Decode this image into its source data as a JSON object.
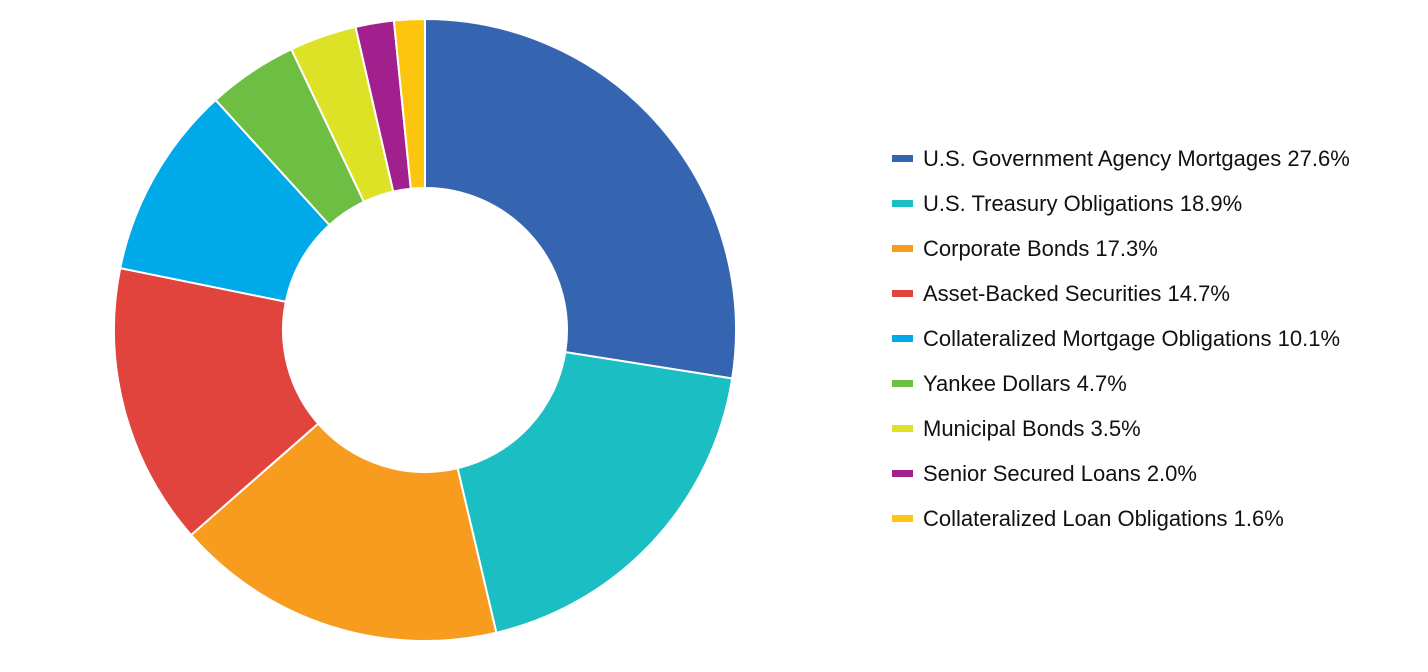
{
  "chart_data": {
    "type": "pie",
    "variant": "donut",
    "legend_position": "right",
    "categories": [
      "U.S. Government Agency Mortgages",
      "U.S. Treasury Obligations",
      "Corporate Bonds",
      "Asset-Backed Securities",
      "Collateralized Mortgage Obligations",
      "Yankee Dollars",
      "Municipal Bonds",
      "Senior Secured Loans",
      "Collateralized Loan Obligations"
    ],
    "values": [
      27.6,
      18.9,
      17.3,
      14.7,
      10.1,
      4.7,
      3.5,
      2.0,
      1.6
    ],
    "value_labels": [
      "27.6%",
      "18.9%",
      "17.3%",
      "14.7%",
      "10.1%",
      "4.7%",
      "3.5%",
      "2.0%",
      "1.6%"
    ],
    "legend_labels": [
      "U.S. Government Agency Mortgages 27.6%",
      "U.S. Treasury Obligations 18.9%",
      "Corporate Bonds 17.3%",
      "Asset-Backed Securities 14.7%",
      "Collateralized Mortgage Obligations 10.1%",
      "Yankee Dollars 4.7%",
      "Municipal Bonds 3.5%",
      "Senior Secured Loans 2.0%",
      "Collateralized Loan Obligations 1.6%"
    ],
    "colors": [
      "#3564b0",
      "#1bbec2",
      "#f89c20",
      "#e1433d",
      "#00a9e8",
      "#6fbe44",
      "#dde226",
      "#a2208e",
      "#fec50f"
    ]
  }
}
